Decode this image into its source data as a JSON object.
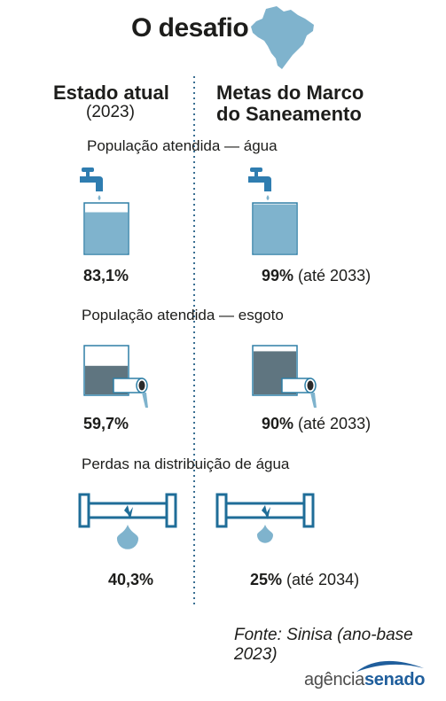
{
  "title": "O desafio",
  "columns": {
    "left_title": "Estado atual",
    "left_subtitle": "(2023)",
    "right_title_line1": "Metas do Marco",
    "right_title_line2": "do Saneamento"
  },
  "sections": [
    {
      "label": "População atendida — água",
      "current": {
        "value": "83,1%",
        "note": "",
        "level": 0.831
      },
      "target": {
        "value": "99%",
        "note": " (até 2033)",
        "level": 0.99
      }
    },
    {
      "label": "População atendida — esgoto",
      "current": {
        "value": "59,7%",
        "note": "",
        "level": 0.597
      },
      "target": {
        "value": "90%",
        "note": " (até 2033)",
        "level": 0.9
      }
    },
    {
      "label": "Perdas na distribuição de água",
      "current": {
        "value": "40,3%",
        "note": "",
        "level": 0.403
      },
      "target": {
        "value": "25%",
        "note": " (até 2034)",
        "level": 0.25
      }
    }
  ],
  "source": "Fonte: Sinisa (ano-base 2023)",
  "brand": {
    "part1": "agência",
    "part2": "senado"
  },
  "colors": {
    "water": "#7fb3cd",
    "water_dark": "#2e7fa6",
    "pipe": "#1f6d98",
    "sewage": "#5f7580",
    "faucet": "#2f7db0",
    "divider": "#3a6f92",
    "brand_blue": "#1f5e9c"
  },
  "icons": [
    "brazil-map-icon",
    "faucet-icon",
    "water-glass-icon",
    "sewage-tank-icon",
    "leaking-pipe-icon",
    "water-drop-icon"
  ]
}
